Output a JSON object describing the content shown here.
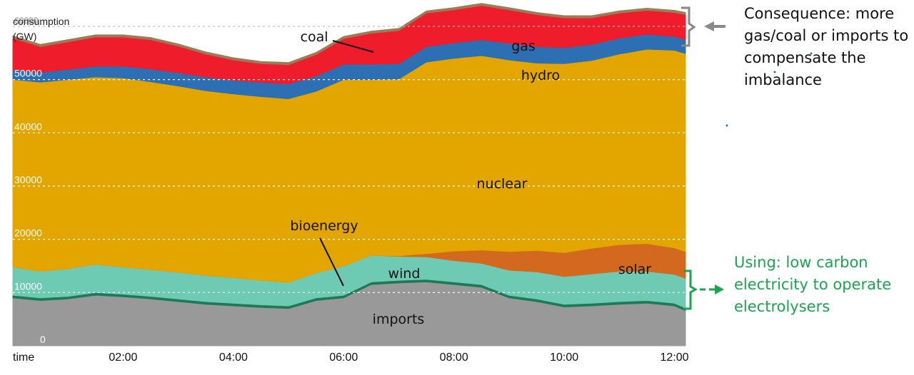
{
  "chart_data": {
    "type": "area",
    "stacked": true,
    "ylabel_line1": "consumption",
    "ylabel_line2": "(GW)",
    "xlabel": "time",
    "ylim": [
      0,
      62000
    ],
    "x_range": [
      0,
      12.2
    ],
    "y_ticks": [
      {
        "value": 0,
        "label": "0"
      },
      {
        "value": 10000,
        "label": "10000"
      },
      {
        "value": 20000,
        "label": "20000"
      },
      {
        "value": 30000,
        "label": "30000"
      },
      {
        "value": 40000,
        "label": "40000"
      },
      {
        "value": 50000,
        "label": "50000"
      },
      {
        "value": 60000,
        "label": "60000"
      }
    ],
    "x_ticks": [
      {
        "value": 2,
        "label": "02:00"
      },
      {
        "value": 4,
        "label": "04:00"
      },
      {
        "value": 6,
        "label": "06:00"
      },
      {
        "value": 8,
        "label": "08:00"
      },
      {
        "value": 10,
        "label": "10:00"
      },
      {
        "value": 12,
        "label": "12:00"
      }
    ],
    "x": [
      0,
      0.5,
      1,
      1.5,
      2,
      2.5,
      3,
      3.5,
      4,
      4.5,
      5,
      5.5,
      6,
      6.5,
      7,
      7.5,
      8,
      8.5,
      9,
      9.5,
      10,
      10.5,
      11,
      11.5,
      12,
      12.2
    ],
    "series": [
      {
        "name": "imports",
        "color": "#999999",
        "values": [
          9000,
          8500,
          8800,
          9500,
          9200,
          8800,
          8300,
          7800,
          7500,
          7200,
          7000,
          8500,
          9000,
          11500,
          11800,
          12000,
          11500,
          11000,
          9000,
          8300,
          7300,
          7500,
          7800,
          8000,
          7500,
          6600
        ]
      },
      {
        "name": "bioenergy",
        "color": "#1e7a56",
        "values": [
          500,
          500,
          500,
          500,
          500,
          500,
          500,
          500,
          500,
          500,
          500,
          500,
          500,
          500,
          500,
          500,
          500,
          500,
          500,
          500,
          500,
          500,
          500,
          500,
          500,
          500
        ]
      },
      {
        "name": "wind",
        "color": "#6fcab4",
        "values": [
          5300,
          5000,
          5200,
          5300,
          5100,
          5000,
          5000,
          4900,
          4800,
          4600,
          4400,
          4700,
          5500,
          5000,
          4500,
          4200,
          4000,
          4000,
          4700,
          5100,
          5200,
          5500,
          5700,
          5500,
          5400,
          5600
        ]
      },
      {
        "name": "solar",
        "color": "#d2691e",
        "values": [
          0,
          0,
          0,
          0,
          0,
          0,
          0,
          0,
          0,
          0,
          0,
          0,
          0,
          0,
          100,
          600,
          1800,
          2500,
          3500,
          4000,
          4500,
          4800,
          5000,
          5200,
          5000,
          5000
        ]
      },
      {
        "name": "nuclear",
        "color": "#e3a600",
        "values": [
          35200,
          35500,
          35500,
          35200,
          35500,
          35300,
          35000,
          34700,
          34500,
          34500,
          34500,
          34100,
          35000,
          33000,
          33200,
          36000,
          36200,
          36500,
          36000,
          35200,
          35500,
          35300,
          35800,
          36500,
          37100,
          37200
        ]
      },
      {
        "name": "hydro",
        "color": "#2c6fb2",
        "values": [
          1800,
          1900,
          1900,
          2000,
          2200,
          2400,
          2500,
          2600,
          2600,
          2700,
          2800,
          2900,
          2900,
          2900,
          2900,
          2900,
          2900,
          3000,
          3100,
          3100,
          3000,
          3000,
          3000,
          2800,
          2600,
          2600
        ]
      },
      {
        "name": "gas",
        "color": "#ef1c2c",
        "values": [
          6000,
          4800,
          5200,
          5500,
          5500,
          5500,
          5000,
          4300,
          3800,
          3500,
          3600,
          4000,
          4800,
          5800,
          6200,
          6300,
          6200,
          6400,
          6300,
          6000,
          5600,
          5000,
          4700,
          4500,
          4500,
          4700
        ]
      },
      {
        "name": "coal",
        "color": "#9e7a56",
        "values": [
          400,
          400,
          400,
          400,
          400,
          400,
          400,
          400,
          400,
          400,
          400,
          400,
          400,
          400,
          400,
          400,
          400,
          400,
          400,
          400,
          400,
          400,
          400,
          400,
          400,
          400
        ]
      }
    ],
    "labels": {
      "coal": "coal",
      "gas": "gas",
      "hydro": "hydro",
      "nuclear": "nuclear",
      "bioenergy": "bioenergy",
      "wind": "wind",
      "solar": "solar",
      "imports": "imports"
    },
    "annotations": {
      "consequence": "Consequence: more gas/coal or imports to compensate the imbalance",
      "using": "Using: low carbon electricity to operate electrolysers"
    },
    "colors": {
      "consequence_arrow": "#888888",
      "using_arrow": "#1aa64f",
      "grid": "#ffffff",
      "ref_line_60000": "#bbbbbb"
    }
  }
}
